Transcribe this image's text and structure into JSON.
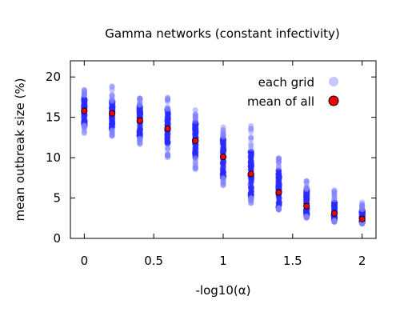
{
  "chart_data": {
    "type": "scatter",
    "title": "Gamma networks (constant infectivity)",
    "xlabel": "-log10(α)",
    "ylabel": "mean outbreak size (%)",
    "xlim": [
      -0.1,
      2.1
    ],
    "ylim": [
      0,
      22
    ],
    "xticks": [
      0,
      0.5,
      1,
      1.5,
      2
    ],
    "xtick_labels": [
      "0",
      "0.5",
      "1",
      "1.5",
      "2"
    ],
    "yticks": [
      0,
      5,
      10,
      15,
      20
    ],
    "ytick_labels": [
      "0",
      "5",
      "10",
      "15",
      "20"
    ],
    "grid": false,
    "legend_position": "top-right",
    "series": [
      {
        "name": "each grid",
        "color": "#8080ff",
        "marker": "circle-translucent",
        "groups": [
          {
            "x": 0.0,
            "min": 13.0,
            "max": 18.5,
            "core_min": 14.0,
            "core_max": 17.5
          },
          {
            "x": 0.2,
            "min": 12.5,
            "max": 19.0,
            "core_min": 13.5,
            "core_max": 17.0
          },
          {
            "x": 0.4,
            "min": 11.5,
            "max": 17.5,
            "core_min": 12.5,
            "core_max": 16.5
          },
          {
            "x": 0.6,
            "min": 10.0,
            "max": 17.5,
            "core_min": 11.5,
            "core_max": 16.0
          },
          {
            "x": 0.8,
            "min": 8.5,
            "max": 16.5,
            "core_min": 10.0,
            "core_max": 14.5
          },
          {
            "x": 1.0,
            "min": 6.5,
            "max": 14.0,
            "core_min": 7.5,
            "core_max": 12.5
          },
          {
            "x": 1.2,
            "min": 4.2,
            "max": 14.0,
            "core_min": 5.0,
            "core_max": 11.0
          },
          {
            "x": 1.4,
            "min": 3.5,
            "max": 10.0,
            "core_min": 3.8,
            "core_max": 8.5
          },
          {
            "x": 1.6,
            "min": 2.5,
            "max": 7.8,
            "core_min": 2.8,
            "core_max": 6.0
          },
          {
            "x": 1.8,
            "min": 2.0,
            "max": 6.0,
            "core_min": 2.2,
            "core_max": 4.5
          },
          {
            "x": 2.0,
            "min": 1.8,
            "max": 4.5,
            "core_min": 1.9,
            "core_max": 3.5
          }
        ]
      },
      {
        "name": "mean of all",
        "color": "#ee0000",
        "marker": "circle-outlined",
        "x": [
          0.0,
          0.2,
          0.4,
          0.6,
          0.8,
          1.0,
          1.2,
          1.4,
          1.6,
          1.8,
          2.0
        ],
        "y": [
          15.8,
          15.5,
          14.6,
          13.6,
          12.1,
          10.1,
          8.0,
          5.7,
          4.0,
          3.1,
          2.4
        ]
      }
    ]
  }
}
